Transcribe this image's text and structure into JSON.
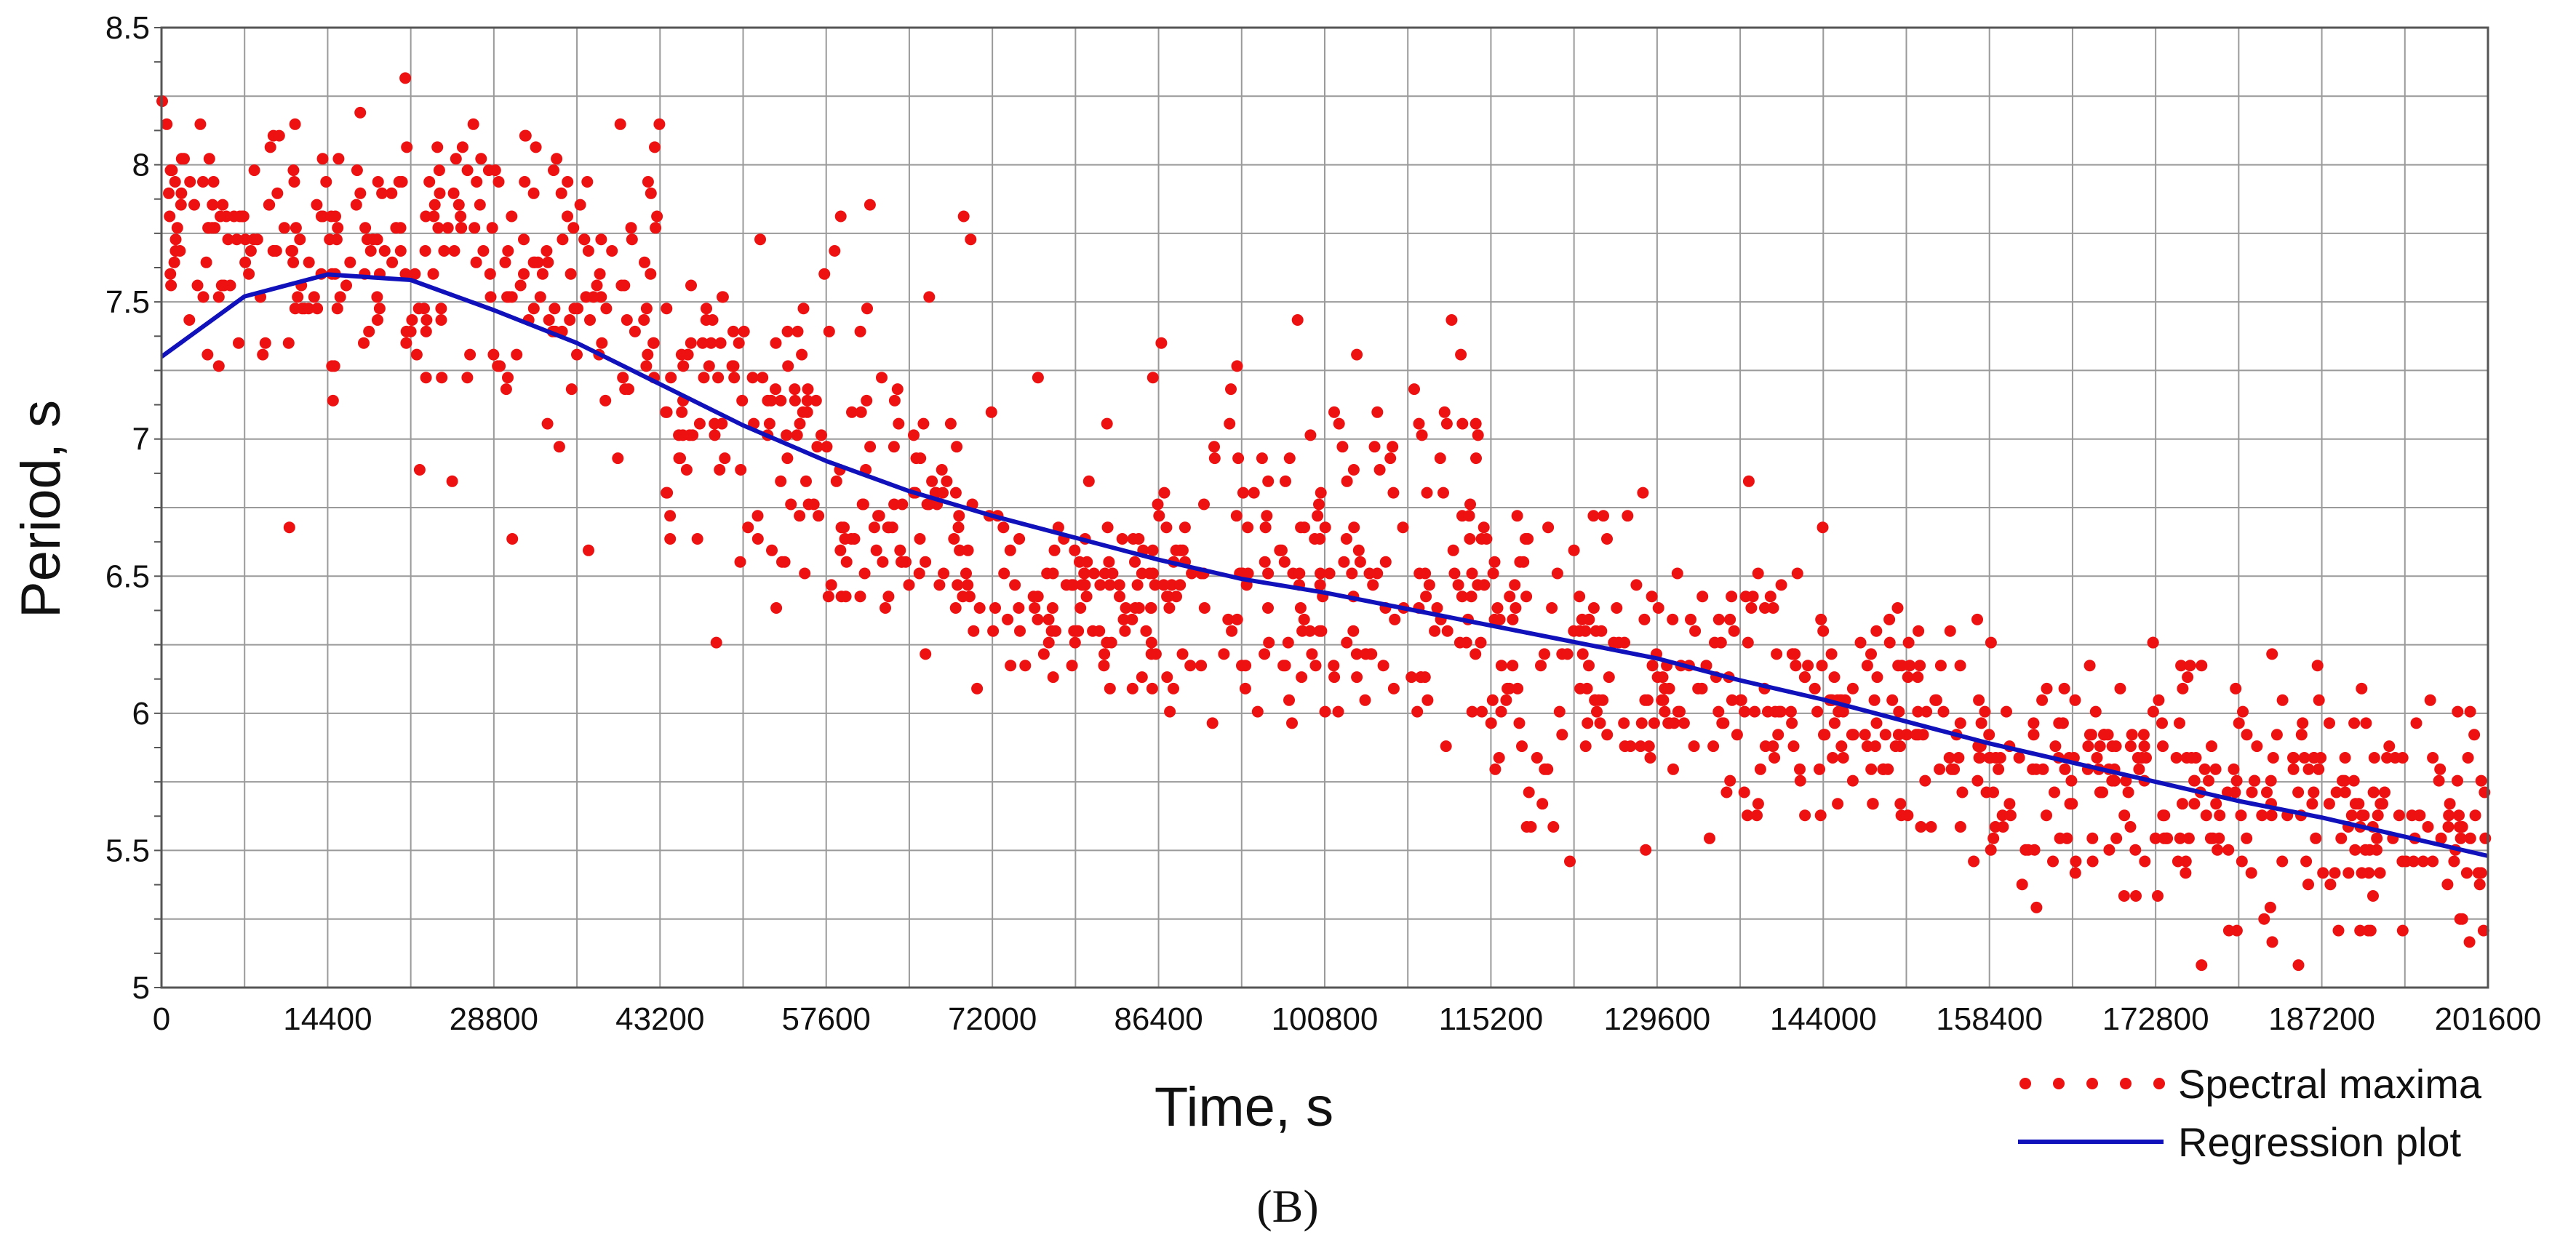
{
  "chart_data": {
    "type": "scatter",
    "xlabel": "Time, s",
    "ylabel": "Period, s",
    "xlim": [
      0,
      201600
    ],
    "ylim": [
      5,
      8.5
    ],
    "x_ticks": [
      "0",
      "14400",
      "28800",
      "43200",
      "57600",
      "72000",
      "86400",
      "100800",
      "115200",
      "129600",
      "144000",
      "158400",
      "172800",
      "187200",
      "201600"
    ],
    "y_ticks": [
      "5",
      "5.5",
      "6",
      "6.5",
      "7",
      "7.5",
      "8",
      "8.5"
    ],
    "grid": true,
    "legend_position": "bottom-right",
    "colors": {
      "spectral_maxima": "#ee1111",
      "regression": "#1111bb",
      "grid": "#9a9a9a"
    },
    "series": [
      {
        "name": "Spectral maxima",
        "kind": "scatter",
        "bands": [
          {
            "x": [
              0,
              14400
            ],
            "center": 7.75,
            "spread": 0.3,
            "outlier_low": 6.5,
            "outlier_high": 8.25
          },
          {
            "x": [
              14400,
              28800
            ],
            "center": 7.7,
            "spread": 0.35,
            "outlier_low": 6.5,
            "outlier_high": 8.25
          },
          {
            "x": [
              28800,
              43200
            ],
            "center": 7.6,
            "spread": 0.4,
            "outlier_low": 6.4,
            "outlier_high": 8.0
          },
          {
            "x": [
              43200,
              57600
            ],
            "center": 7.1,
            "spread": 0.4,
            "outlier_low": 6.25,
            "outlier_high": 8.0
          },
          {
            "x": [
              57600,
              72000
            ],
            "center": 6.7,
            "spread": 0.4,
            "outlier_low": 6.25,
            "outlier_high": 8.0
          },
          {
            "x": [
              72000,
              86400
            ],
            "center": 6.4,
            "spread": 0.25,
            "outlier_low": 5.95,
            "outlier_high": 7.3
          },
          {
            "x": [
              86400,
              100800
            ],
            "center": 6.5,
            "spread": 0.45,
            "outlier_low": 5.65,
            "outlier_high": 7.5
          },
          {
            "x": [
              100800,
              115200
            ],
            "center": 6.6,
            "spread": 0.5,
            "outlier_low": 5.6,
            "outlier_high": 7.2
          },
          {
            "x": [
              115200,
              129600
            ],
            "center": 6.2,
            "spread": 0.45,
            "outlier_low": 5.5,
            "outlier_high": 7.0
          },
          {
            "x": [
              129600,
              144000
            ],
            "center": 6.15,
            "spread": 0.4,
            "outlier_low": 5.6,
            "outlier_high": 6.8
          },
          {
            "x": [
              144000,
              158400
            ],
            "center": 5.95,
            "spread": 0.3,
            "outlier_low": 5.45,
            "outlier_high": 6.4
          },
          {
            "x": [
              158400,
              172800
            ],
            "center": 5.8,
            "spread": 0.3,
            "outlier_low": 5.2,
            "outlier_high": 6.3
          },
          {
            "x": [
              172800,
              187200
            ],
            "center": 5.7,
            "spread": 0.3,
            "outlier_low": 5.0,
            "outlier_high": 6.25
          },
          {
            "x": [
              187200,
              201600
            ],
            "center": 5.65,
            "spread": 0.3,
            "outlier_low": 5.1,
            "outlier_high": 5.95
          }
        ]
      },
      {
        "name": "Regression plot",
        "kind": "line",
        "x": [
          0,
          7200,
          14400,
          21600,
          28800,
          36000,
          43200,
          50400,
          57600,
          64800,
          72000,
          79200,
          86400,
          93600,
          100800,
          108000,
          115200,
          122400,
          129600,
          136800,
          144000,
          151200,
          158400,
          165600,
          172800,
          180000,
          187200,
          194400,
          201600
        ],
        "y": [
          7.3,
          7.52,
          7.6,
          7.58,
          7.47,
          7.35,
          7.2,
          7.05,
          6.92,
          6.81,
          6.72,
          6.64,
          6.56,
          6.49,
          6.44,
          6.38,
          6.32,
          6.26,
          6.2,
          6.12,
          6.05,
          5.97,
          5.89,
          5.82,
          5.75,
          5.68,
          5.62,
          5.55,
          5.48
        ]
      }
    ],
    "legend": [
      "Spectral maxima",
      "Regression plot"
    ],
    "panel_label": "(B)"
  }
}
